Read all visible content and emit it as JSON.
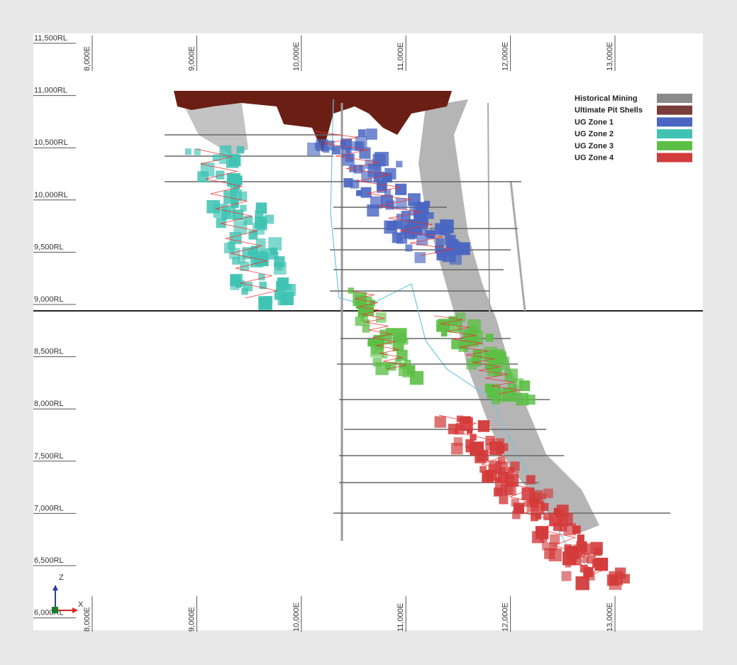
{
  "rl_labels": [
    "11,500RL",
    "11,000RL",
    "10,500RL",
    "10,000RL",
    "9,500RL",
    "9,000RL",
    "8,500RL",
    "8,000RL",
    "7,500RL",
    "7,000RL",
    "6,500RL",
    "6,000RL"
  ],
  "e_labels": [
    "8,000E",
    "9,000E",
    "10,000E",
    "11,000E",
    "12,000E",
    "13,000E"
  ],
  "legend": [
    {
      "label": "Historical Mining",
      "color": "#8a8a8a"
    },
    {
      "label": "Ultimate Pit Shells",
      "color": "#7a3b3b"
    },
    {
      "label": "UG Zone 1",
      "color": "#4a66c2"
    },
    {
      "label": "UG Zone 2",
      "color": "#40c3b3"
    },
    {
      "label": "UG Zone 3",
      "color": "#5cbf45"
    },
    {
      "label": "UG Zone 4",
      "color": "#d23b3b"
    }
  ],
  "axes": {
    "z": "Z",
    "x": "X"
  }
}
